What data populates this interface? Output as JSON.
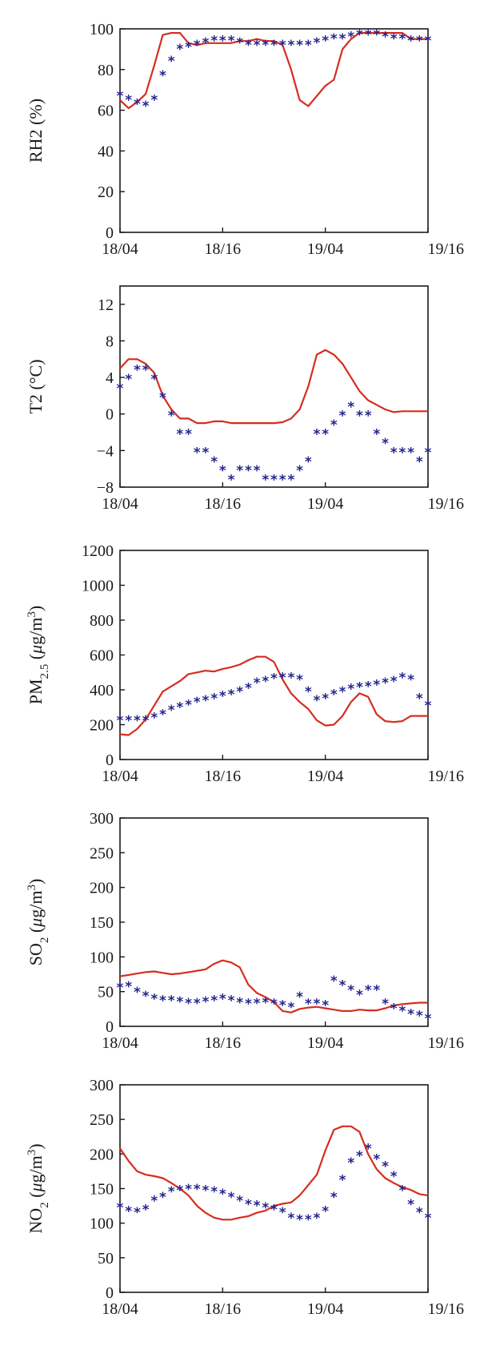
{
  "colors": {
    "line": "#d62d1f",
    "markers": "#24248f",
    "axis": "#1a1a1a"
  },
  "chart_data": [
    {
      "type": "line",
      "ylabel": "RH2 (%)",
      "ylabel_parts": [
        {
          "t": "RH2 (%)"
        }
      ],
      "ylim": [
        0,
        100
      ],
      "yticks": [
        0,
        20,
        40,
        60,
        80,
        100
      ],
      "xlim": [
        0,
        36
      ],
      "xticks": [
        0,
        12,
        24,
        36
      ],
      "xticklabels": [
        "18/04",
        "18/16",
        "19/04",
        "19/16"
      ],
      "series": [
        {
          "style": "line",
          "x": [
            0,
            1,
            2,
            3,
            4,
            5,
            6,
            7,
            8,
            9,
            10,
            11,
            12,
            13,
            14,
            15,
            16,
            17,
            18,
            19,
            20,
            21,
            22,
            23,
            24,
            25,
            26,
            27,
            28,
            29,
            30,
            31,
            32,
            33,
            34,
            35,
            36
          ],
          "values": [
            65,
            61,
            64,
            68,
            82,
            97,
            98,
            98,
            93,
            92,
            93,
            93,
            93,
            93,
            94,
            94,
            95,
            94,
            94,
            92,
            80,
            65,
            62,
            67,
            72,
            75,
            90,
            95,
            98,
            98,
            98,
            98,
            98,
            98,
            95,
            95,
            95
          ]
        },
        {
          "style": "marker",
          "marker": "*",
          "x": [
            0,
            1,
            2,
            3,
            4,
            5,
            6,
            7,
            8,
            9,
            10,
            11,
            12,
            13,
            14,
            15,
            16,
            17,
            18,
            19,
            20,
            21,
            22,
            23,
            24,
            25,
            26,
            27,
            28,
            29,
            30,
            31,
            32,
            33,
            34,
            35,
            36
          ],
          "values": [
            68,
            66,
            64,
            63,
            66,
            78,
            85,
            91,
            92,
            93,
            94,
            95,
            95,
            95,
            94,
            93,
            93,
            93,
            93,
            93,
            93,
            93,
            93,
            94,
            95,
            96,
            96,
            97,
            98,
            98,
            98,
            97,
            96,
            96,
            95,
            95,
            95
          ]
        }
      ]
    },
    {
      "type": "line",
      "ylabel": "T2 (°C)",
      "ylabel_parts": [
        {
          "t": "T2 (°C)"
        }
      ],
      "ylim": [
        -8,
        14
      ],
      "yticks": [
        -8,
        -4,
        0,
        4,
        8,
        12
      ],
      "yticklabels": [
        "−8",
        "−4",
        "0",
        "4",
        "8",
        "12"
      ],
      "xlim": [
        0,
        36
      ],
      "xticks": [
        0,
        12,
        24,
        36
      ],
      "xticklabels": [
        "18/04",
        "18/16",
        "19/04",
        "19/16"
      ],
      "series": [
        {
          "style": "line",
          "x": [
            0,
            1,
            2,
            3,
            4,
            5,
            6,
            7,
            8,
            9,
            10,
            11,
            12,
            13,
            14,
            15,
            16,
            17,
            18,
            19,
            20,
            21,
            22,
            23,
            24,
            25,
            26,
            27,
            28,
            29,
            30,
            31,
            32,
            33,
            34,
            35,
            36
          ],
          "values": [
            5,
            6,
            6,
            5.5,
            4.5,
            2,
            0.5,
            -0.5,
            -0.5,
            -1,
            -1,
            -0.8,
            -0.8,
            -1,
            -1,
            -1,
            -1,
            -1,
            -1,
            -0.9,
            -0.5,
            0.5,
            3,
            6.5,
            7,
            6.5,
            5.5,
            4,
            2.5,
            1.5,
            1,
            0.5,
            0.2,
            0.3,
            0.3,
            0.3,
            0.3
          ]
        },
        {
          "style": "marker",
          "marker": "*",
          "x": [
            0,
            1,
            2,
            3,
            4,
            5,
            6,
            7,
            8,
            9,
            10,
            11,
            12,
            13,
            14,
            15,
            16,
            17,
            18,
            19,
            20,
            21,
            22,
            23,
            24,
            25,
            26,
            27,
            28,
            29,
            30,
            31,
            32,
            33,
            34,
            35,
            36
          ],
          "values": [
            3,
            4,
            5,
            5,
            4,
            2,
            0,
            -2,
            -2,
            -4,
            -4,
            -5,
            -6,
            -7,
            -6,
            -6,
            -6,
            -7,
            -7,
            -7,
            -7,
            -6,
            -5,
            -2,
            -2,
            -1,
            0,
            1,
            0,
            0,
            -2,
            -3,
            -4,
            -4,
            -4,
            -5,
            -4
          ]
        }
      ]
    },
    {
      "type": "line",
      "ylabel": "PM2.5 (μg/m3)",
      "ylabel_parts": [
        {
          "t": "PM"
        },
        {
          "t": "2.5",
          "sub": true
        },
        {
          "t": " ("
        },
        {
          "t": "μ",
          "italic": true
        },
        {
          "t": "g/m"
        },
        {
          "t": "3",
          "sup": true
        },
        {
          "t": ")"
        }
      ],
      "ylim": [
        0,
        1200
      ],
      "yticks": [
        0,
        200,
        400,
        600,
        800,
        1000,
        1200
      ],
      "xlim": [
        0,
        36
      ],
      "xticks": [
        0,
        12,
        24,
        36
      ],
      "xticklabels": [
        "18/04",
        "18/16",
        "19/04",
        "19/16"
      ],
      "series": [
        {
          "style": "line",
          "x": [
            0,
            1,
            2,
            3,
            4,
            5,
            6,
            7,
            8,
            9,
            10,
            11,
            12,
            13,
            14,
            15,
            16,
            17,
            18,
            19,
            20,
            21,
            22,
            23,
            24,
            25,
            26,
            27,
            28,
            29,
            30,
            31,
            32,
            33,
            34,
            35,
            36
          ],
          "values": [
            145,
            140,
            175,
            230,
            310,
            390,
            420,
            450,
            490,
            500,
            510,
            505,
            520,
            530,
            545,
            570,
            590,
            590,
            560,
            460,
            380,
            330,
            290,
            225,
            195,
            200,
            250,
            330,
            380,
            360,
            260,
            220,
            215,
            220,
            250,
            250,
            250
          ]
        },
        {
          "style": "marker",
          "marker": "*",
          "x": [
            0,
            1,
            2,
            3,
            4,
            5,
            6,
            7,
            8,
            9,
            10,
            11,
            12,
            13,
            14,
            15,
            16,
            17,
            18,
            19,
            20,
            21,
            22,
            23,
            24,
            25,
            26,
            27,
            28,
            29,
            30,
            31,
            32,
            33,
            34,
            35,
            36
          ],
          "values": [
            235,
            235,
            235,
            235,
            250,
            270,
            295,
            310,
            325,
            340,
            350,
            360,
            375,
            385,
            400,
            420,
            450,
            460,
            475,
            480,
            480,
            470,
            400,
            350,
            360,
            385,
            400,
            415,
            425,
            430,
            440,
            450,
            460,
            480,
            470,
            360,
            320
          ]
        }
      ]
    },
    {
      "type": "line",
      "ylabel": "SO2 (μg/m3)",
      "ylabel_parts": [
        {
          "t": "SO"
        },
        {
          "t": "2",
          "sub": true
        },
        {
          "t": " ("
        },
        {
          "t": "μ",
          "italic": true
        },
        {
          "t": "g/m"
        },
        {
          "t": "3",
          "sup": true
        },
        {
          "t": ")"
        }
      ],
      "ylim": [
        0,
        300
      ],
      "yticks": [
        0,
        50,
        100,
        150,
        200,
        250,
        300
      ],
      "xlim": [
        0,
        36
      ],
      "xticks": [
        0,
        12,
        24,
        36
      ],
      "xticklabels": [
        "18/04",
        "18/16",
        "19/04",
        "19/16"
      ],
      "series": [
        {
          "style": "line",
          "x": [
            0,
            1,
            2,
            3,
            4,
            5,
            6,
            7,
            8,
            9,
            10,
            11,
            12,
            13,
            14,
            15,
            16,
            17,
            18,
            19,
            20,
            21,
            22,
            23,
            24,
            25,
            26,
            27,
            28,
            29,
            30,
            31,
            32,
            33,
            34,
            35,
            36
          ],
          "values": [
            72,
            74,
            76,
            78,
            79,
            77,
            75,
            76,
            78,
            80,
            82,
            90,
            95,
            92,
            85,
            60,
            48,
            42,
            35,
            22,
            20,
            25,
            27,
            28,
            26,
            24,
            22,
            22,
            24,
            23,
            23,
            26,
            30,
            32,
            33,
            34,
            34
          ]
        },
        {
          "style": "marker",
          "marker": "*",
          "x": [
            0,
            1,
            2,
            3,
            4,
            5,
            6,
            7,
            8,
            9,
            10,
            11,
            12,
            13,
            14,
            15,
            16,
            17,
            18,
            19,
            20,
            21,
            22,
            23,
            24,
            25,
            26,
            27,
            28,
            29,
            30,
            31,
            32,
            33,
            34,
            35,
            36
          ],
          "values": [
            58,
            60,
            52,
            46,
            42,
            40,
            40,
            38,
            36,
            36,
            38,
            40,
            42,
            40,
            37,
            35,
            36,
            37,
            35,
            33,
            30,
            45,
            35,
            35,
            33,
            68,
            62,
            55,
            48,
            55,
            55,
            35,
            28,
            25,
            20,
            18,
            14
          ]
        }
      ]
    },
    {
      "type": "line",
      "ylabel": "NO2 (μg/m3)",
      "ylabel_parts": [
        {
          "t": "NO"
        },
        {
          "t": "2",
          "sub": true
        },
        {
          "t": " ("
        },
        {
          "t": "μ",
          "italic": true
        },
        {
          "t": "g/m"
        },
        {
          "t": "3",
          "sup": true
        },
        {
          "t": ")"
        }
      ],
      "ylim": [
        0,
        300
      ],
      "yticks": [
        0,
        50,
        100,
        150,
        200,
        250,
        300
      ],
      "xlim": [
        0,
        36
      ],
      "xticks": [
        0,
        12,
        24,
        36
      ],
      "xticklabels": [
        "18/04",
        "18/16",
        "19/04",
        "19/16"
      ],
      "series": [
        {
          "style": "line",
          "x": [
            0,
            1,
            2,
            3,
            4,
            5,
            6,
            7,
            8,
            9,
            10,
            11,
            12,
            13,
            14,
            15,
            16,
            17,
            18,
            19,
            20,
            21,
            22,
            23,
            24,
            25,
            26,
            27,
            28,
            29,
            30,
            31,
            32,
            33,
            34,
            35,
            36
          ],
          "values": [
            208,
            190,
            175,
            170,
            168,
            165,
            158,
            150,
            140,
            125,
            115,
            108,
            105,
            105,
            108,
            110,
            115,
            118,
            125,
            128,
            130,
            140,
            155,
            170,
            205,
            235,
            240,
            240,
            232,
            200,
            178,
            165,
            158,
            152,
            148,
            142,
            140
          ]
        },
        {
          "style": "marker",
          "marker": "*",
          "x": [
            0,
            1,
            2,
            3,
            4,
            5,
            6,
            7,
            8,
            9,
            10,
            11,
            12,
            13,
            14,
            15,
            16,
            17,
            18,
            19,
            20,
            21,
            22,
            23,
            24,
            25,
            26,
            27,
            28,
            29,
            30,
            31,
            32,
            33,
            34,
            35,
            36
          ],
          "values": [
            125,
            120,
            118,
            122,
            135,
            140,
            148,
            150,
            152,
            152,
            150,
            148,
            145,
            140,
            135,
            130,
            128,
            125,
            122,
            118,
            110,
            108,
            108,
            110,
            120,
            140,
            165,
            190,
            200,
            210,
            195,
            185,
            170,
            150,
            130,
            118,
            110
          ]
        }
      ]
    }
  ]
}
